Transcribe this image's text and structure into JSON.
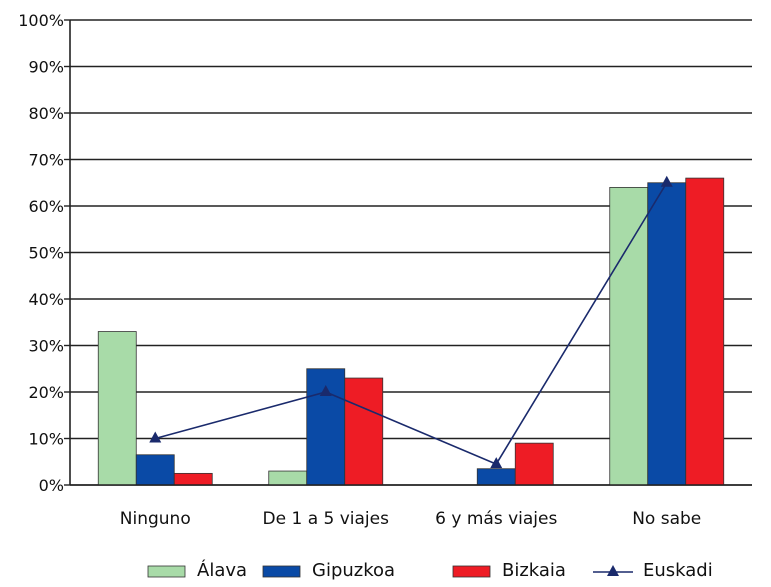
{
  "chart_data": {
    "type": "bar",
    "title": "",
    "xlabel": "",
    "ylabel": "",
    "ylim": [
      0,
      100
    ],
    "yticks": [
      "0%",
      "10%",
      "20%",
      "30%",
      "40%",
      "50%",
      "60%",
      "70%",
      "80%",
      "90%",
      "100%"
    ],
    "categories": [
      "Ninguno",
      "De 1 a 5 viajes",
      "6 y más viajes",
      "No sabe"
    ],
    "series": [
      {
        "name": "Álava",
        "type": "bar",
        "color": "#a8dba8",
        "values": [
          33,
          3,
          0,
          64
        ]
      },
      {
        "name": "Gipuzkoa",
        "type": "bar",
        "color": "#0a4aa6",
        "values": [
          6.5,
          25,
          3.5,
          65
        ]
      },
      {
        "name": "Bizkaia",
        "type": "bar",
        "color": "#ee1c25",
        "values": [
          2.5,
          23,
          9,
          66
        ]
      },
      {
        "name": "Euskadi",
        "type": "line",
        "color": "#1a2a6c",
        "marker": "triangle",
        "values": [
          10,
          20,
          4.5,
          65
        ]
      }
    ],
    "grid": true,
    "legend": "bottom"
  }
}
